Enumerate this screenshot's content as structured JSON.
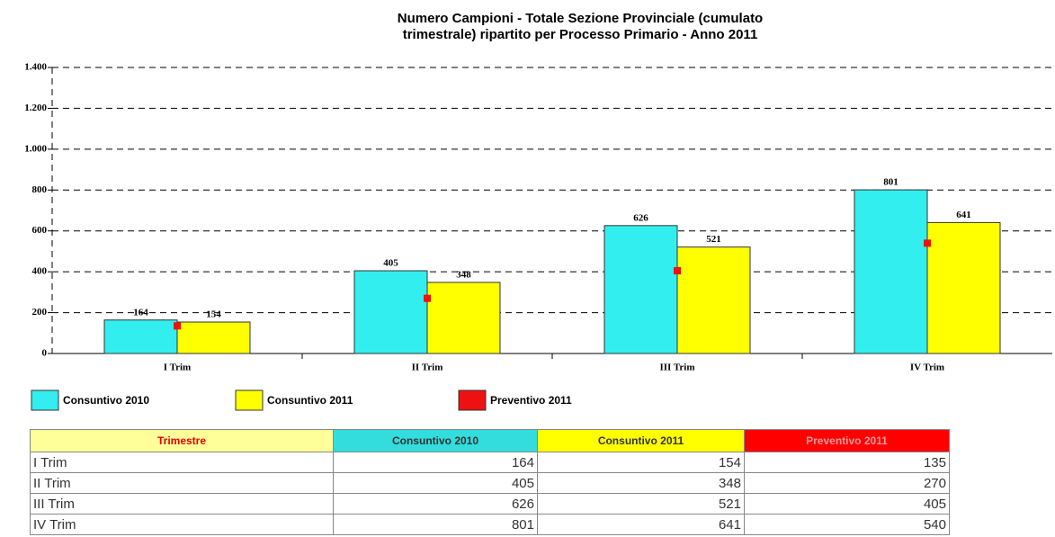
{
  "chart_data": {
    "type": "bar",
    "title": [
      "Numero Campioni - Totale Sezione Provinciale (cumulato",
      "trimestrale) ripartito per Processo Primario - Anno 2011"
    ],
    "categories": [
      "I Trim",
      "II Trim",
      "III Trim",
      "IV Trim"
    ],
    "series": [
      {
        "name": "Consuntivo 2010",
        "color": "#33eeee",
        "mark": "bar",
        "values": [
          164,
          405,
          626,
          801
        ]
      },
      {
        "name": "Consuntivo 2011",
        "color": "#ffff00",
        "mark": "bar",
        "values": [
          154,
          348,
          521,
          641
        ]
      },
      {
        "name": "Preventivo 2011",
        "color": "#ee1111",
        "mark": "point",
        "values": [
          135,
          270,
          405,
          540
        ]
      }
    ],
    "ylim": [
      0,
      1400
    ],
    "yticks": [
      0,
      200,
      400,
      600,
      800,
      {
        "value": 1000,
        "label": "1.000"
      },
      {
        "value": 1200,
        "label": "1.200"
      },
      {
        "value": 1400,
        "label": "1.400"
      }
    ],
    "grid": true
  },
  "table": {
    "first_header": "Trimestre"
  }
}
